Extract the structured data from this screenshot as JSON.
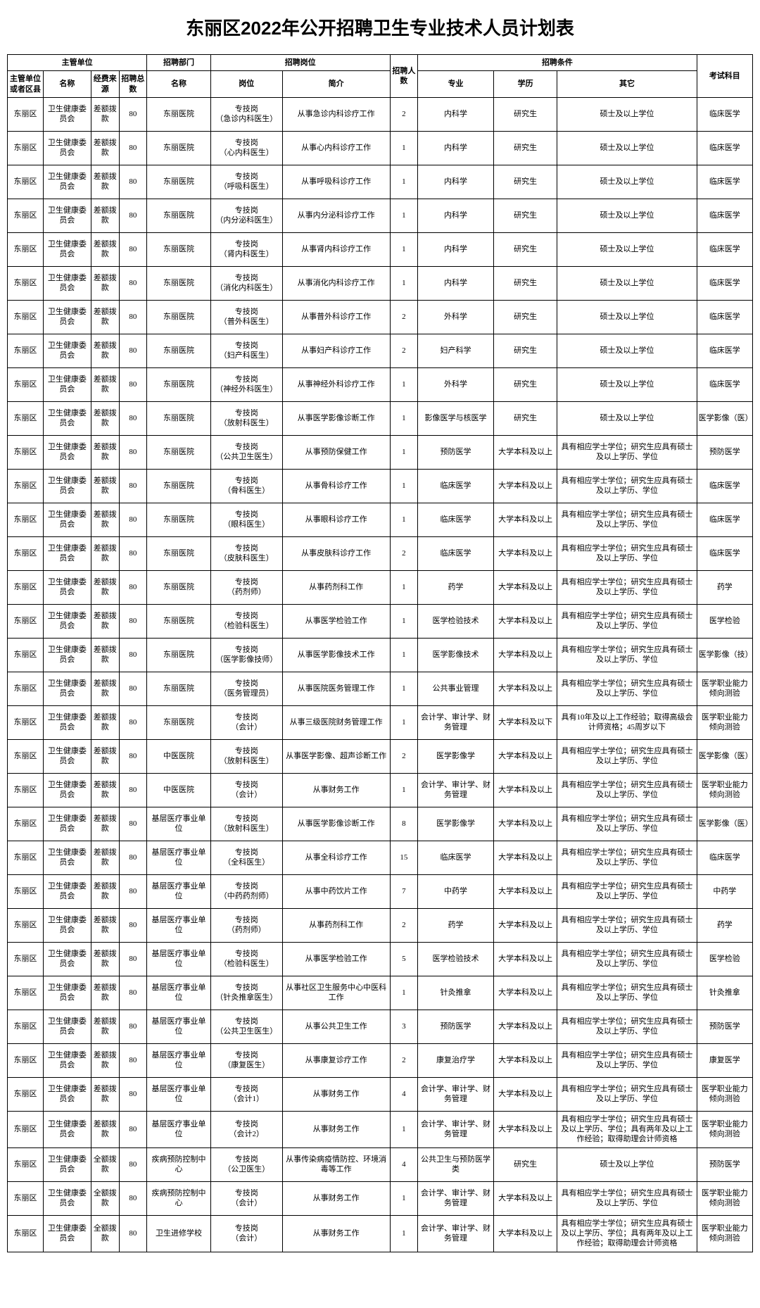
{
  "title": "东丽区2022年公开招聘卫生专业技术人员计划表",
  "headers": {
    "group_supervisor": "主管单位",
    "group_dept": "招聘部门",
    "group_post": "招聘岗位",
    "group_cond": "招聘条件",
    "district": "主管单位或者区县",
    "name": "名称",
    "fund": "经费来源",
    "total": "招聘总数",
    "dept": "名称",
    "post": "岗位",
    "desc": "简介",
    "num": "招聘人数",
    "major": "专业",
    "edu": "学历",
    "other": "其它",
    "exam": "考试科目"
  },
  "common": {
    "district": "东丽区",
    "name": "卫生健康委员会",
    "fund_cha": "差额拨款",
    "fund_quan": "全额拨款",
    "total": "80"
  },
  "rows": [
    {
      "dept": "东丽医院",
      "post": "专技岗\n（急诊内科医生）",
      "desc": "从事急诊内科诊疗工作",
      "num": "2",
      "major": "内科学",
      "edu": "研究生",
      "other": "硕士及以上学位",
      "exam": "临床医学"
    },
    {
      "dept": "东丽医院",
      "post": "专技岗\n（心内科医生）",
      "desc": "从事心内科诊疗工作",
      "num": "1",
      "major": "内科学",
      "edu": "研究生",
      "other": "硕士及以上学位",
      "exam": "临床医学"
    },
    {
      "dept": "东丽医院",
      "post": "专技岗\n（呼吸科医生）",
      "desc": "从事呼吸科诊疗工作",
      "num": "1",
      "major": "内科学",
      "edu": "研究生",
      "other": "硕士及以上学位",
      "exam": "临床医学"
    },
    {
      "dept": "东丽医院",
      "post": "专技岗\n（内分泌科医生）",
      "desc": "从事内分泌科诊疗工作",
      "num": "1",
      "major": "内科学",
      "edu": "研究生",
      "other": "硕士及以上学位",
      "exam": "临床医学"
    },
    {
      "dept": "东丽医院",
      "post": "专技岗\n（肾内科医生）",
      "desc": "从事肾内科诊疗工作",
      "num": "1",
      "major": "内科学",
      "edu": "研究生",
      "other": "硕士及以上学位",
      "exam": "临床医学"
    },
    {
      "dept": "东丽医院",
      "post": "专技岗\n（消化内科医生）",
      "desc": "从事消化内科诊疗工作",
      "num": "1",
      "major": "内科学",
      "edu": "研究生",
      "other": "硕士及以上学位",
      "exam": "临床医学"
    },
    {
      "dept": "东丽医院",
      "post": "专技岗\n（普外科医生）",
      "desc": "从事普外科诊疗工作",
      "num": "2",
      "major": "外科学",
      "edu": "研究生",
      "other": "硕士及以上学位",
      "exam": "临床医学"
    },
    {
      "dept": "东丽医院",
      "post": "专技岗\n（妇产科医生）",
      "desc": "从事妇产科诊疗工作",
      "num": "2",
      "major": "妇产科学",
      "edu": "研究生",
      "other": "硕士及以上学位",
      "exam": "临床医学"
    },
    {
      "dept": "东丽医院",
      "post": "专技岗\n（神经外科医生）",
      "desc": "从事神经外科诊疗工作",
      "num": "1",
      "major": "外科学",
      "edu": "研究生",
      "other": "硕士及以上学位",
      "exam": "临床医学"
    },
    {
      "dept": "东丽医院",
      "post": "专技岗\n（放射科医生）",
      "desc": "从事医学影像诊断工作",
      "num": "1",
      "major": "影像医学与核医学",
      "edu": "研究生",
      "other": "硕士及以上学位",
      "exam": "医学影像（医）"
    },
    {
      "dept": "东丽医院",
      "post": "专技岗\n（公共卫生医生）",
      "desc": "从事预防保健工作",
      "num": "1",
      "major": "预防医学",
      "edu": "大学本科及以上",
      "other": "具有相应学士学位；研究生应具有硕士及以上学历、学位",
      "exam": "预防医学"
    },
    {
      "dept": "东丽医院",
      "post": "专技岗\n（骨科医生）",
      "desc": "从事骨科诊疗工作",
      "num": "1",
      "major": "临床医学",
      "edu": "大学本科及以上",
      "other": "具有相应学士学位；研究生应具有硕士及以上学历、学位",
      "exam": "临床医学"
    },
    {
      "dept": "东丽医院",
      "post": "专技岗\n（眼科医生）",
      "desc": "从事眼科诊疗工作",
      "num": "1",
      "major": "临床医学",
      "edu": "大学本科及以上",
      "other": "具有相应学士学位；研究生应具有硕士及以上学历、学位",
      "exam": "临床医学"
    },
    {
      "dept": "东丽医院",
      "post": "专技岗\n（皮肤科医生）",
      "desc": "从事皮肤科诊疗工作",
      "num": "2",
      "major": "临床医学",
      "edu": "大学本科及以上",
      "other": "具有相应学士学位；研究生应具有硕士及以上学历、学位",
      "exam": "临床医学"
    },
    {
      "dept": "东丽医院",
      "post": "专技岗\n（药剂师）",
      "desc": "从事药剂科工作",
      "num": "1",
      "major": "药学",
      "edu": "大学本科及以上",
      "other": "具有相应学士学位；研究生应具有硕士及以上学历、学位",
      "exam": "药学"
    },
    {
      "dept": "东丽医院",
      "post": "专技岗\n（检验科医生）",
      "desc": "从事医学检验工作",
      "num": "1",
      "major": "医学检验技术",
      "edu": "大学本科及以上",
      "other": "具有相应学士学位；研究生应具有硕士及以上学历、学位",
      "exam": "医学检验"
    },
    {
      "dept": "东丽医院",
      "post": "专技岗\n（医学影像技师）",
      "desc": "从事医学影像技术工作",
      "num": "1",
      "major": "医学影像技术",
      "edu": "大学本科及以上",
      "other": "具有相应学士学位；研究生应具有硕士及以上学历、学位",
      "exam": "医学影像（技）"
    },
    {
      "dept": "东丽医院",
      "post": "专技岗\n（医务管理员）",
      "desc": "从事医院医务管理工作",
      "num": "1",
      "major": "公共事业管理",
      "edu": "大学本科及以上",
      "other": "具有相应学士学位；研究生应具有硕士及以上学历、学位",
      "exam": "医学职业能力倾向测验"
    },
    {
      "dept": "东丽医院",
      "post": "专技岗\n（会计）",
      "desc": "从事三级医院财务管理工作",
      "num": "1",
      "major": "会计学、审计学、财务管理",
      "edu": "大学本科及以下",
      "other": "具有10年及以上工作经验；取得高级会计师资格；45周岁以下",
      "exam": "医学职业能力倾向测验"
    },
    {
      "dept": "中医医院",
      "post": "专技岗\n（放射科医生）",
      "desc": "从事医学影像、超声诊断工作",
      "num": "2",
      "major": "医学影像学",
      "edu": "大学本科及以上",
      "other": "具有相应学士学位；研究生应具有硕士及以上学历、学位",
      "exam": "医学影像（医）"
    },
    {
      "dept": "中医医院",
      "post": "专技岗\n（会计）",
      "desc": "从事财务工作",
      "num": "1",
      "major": "会计学、审计学、财务管理",
      "edu": "大学本科及以上",
      "other": "具有相应学士学位；研究生应具有硕士及以上学历、学位",
      "exam": "医学职业能力倾向测验"
    },
    {
      "dept": "基层医疗事业单位",
      "post": "专技岗\n（放射科医生）",
      "desc": "从事医学影像诊断工作",
      "num": "8",
      "major": "医学影像学",
      "edu": "大学本科及以上",
      "other": "具有相应学士学位；研究生应具有硕士及以上学历、学位",
      "exam": "医学影像（医）"
    },
    {
      "dept": "基层医疗事业单位",
      "post": "专技岗\n（全科医生）",
      "desc": "从事全科诊疗工作",
      "num": "15",
      "major": "临床医学",
      "edu": "大学本科及以上",
      "other": "具有相应学士学位；研究生应具有硕士及以上学历、学位",
      "exam": "临床医学"
    },
    {
      "dept": "基层医疗事业单位",
      "post": "专技岗\n（中药药剂师）",
      "desc": "从事中药饮片工作",
      "num": "7",
      "major": "中药学",
      "edu": "大学本科及以上",
      "other": "具有相应学士学位；研究生应具有硕士及以上学历、学位",
      "exam": "中药学"
    },
    {
      "dept": "基层医疗事业单位",
      "post": "专技岗\n（药剂师）",
      "desc": "从事药剂科工作",
      "num": "2",
      "major": "药学",
      "edu": "大学本科及以上",
      "other": "具有相应学士学位；研究生应具有硕士及以上学历、学位",
      "exam": "药学"
    },
    {
      "dept": "基层医疗事业单位",
      "post": "专技岗\n（检验科医生）",
      "desc": "从事医学检验工作",
      "num": "5",
      "major": "医学检验技术",
      "edu": "大学本科及以上",
      "other": "具有相应学士学位；研究生应具有硕士及以上学历、学位",
      "exam": "医学检验"
    },
    {
      "dept": "基层医疗事业单位",
      "post": "专技岗\n（针灸推拿医生）",
      "desc": "从事社区卫生服务中心中医科工作",
      "num": "1",
      "major": "针灸推拿",
      "edu": "大学本科及以上",
      "other": "具有相应学士学位；研究生应具有硕士及以上学历、学位",
      "exam": "针灸推拿"
    },
    {
      "dept": "基层医疗事业单位",
      "post": "专技岗\n（公共卫生医生）",
      "desc": "从事公共卫生工作",
      "num": "3",
      "major": "预防医学",
      "edu": "大学本科及以上",
      "other": "具有相应学士学位；研究生应具有硕士及以上学历、学位",
      "exam": "预防医学"
    },
    {
      "dept": "基层医疗事业单位",
      "post": "专技岗\n（康复医生）",
      "desc": "从事康复诊疗工作",
      "num": "2",
      "major": "康复治疗学",
      "edu": "大学本科及以上",
      "other": "具有相应学士学位；研究生应具有硕士及以上学历、学位",
      "exam": "康复医学"
    },
    {
      "dept": "基层医疗事业单位",
      "post": "专技岗\n（会计1）",
      "desc": "从事财务工作",
      "num": "4",
      "major": "会计学、审计学、财务管理",
      "edu": "大学本科及以上",
      "other": "具有相应学士学位；研究生应具有硕士及以上学历、学位",
      "exam": "医学职业能力倾向测验"
    },
    {
      "dept": "基层医疗事业单位",
      "post": "专技岗\n（会计2）",
      "desc": "从事财务工作",
      "num": "1",
      "major": "会计学、审计学、财务管理",
      "edu": "大学本科及以上",
      "other": "具有相应学士学位；研究生应具有硕士及以上学历、学位；具有两年及以上工作经验；取得助理会计师资格",
      "exam": "医学职业能力倾向测验"
    },
    {
      "dept": "疾病预防控制中心",
      "post": "专技岗\n（公卫医生）",
      "desc": "从事传染病疫情防控、环境消毒等工作",
      "num": "4",
      "major": "公共卫生与预防医学类",
      "edu": "研究生",
      "other": "硕士及以上学位",
      "exam": "预防医学",
      "fund": "quan"
    },
    {
      "dept": "疾病预防控制中心",
      "post": "专技岗\n（会计）",
      "desc": "从事财务工作",
      "num": "1",
      "major": "会计学、审计学、财务管理",
      "edu": "大学本科及以上",
      "other": "具有相应学士学位；研究生应具有硕士及以上学历、学位",
      "exam": "医学职业能力倾向测验",
      "fund": "quan"
    },
    {
      "dept": "卫生进修学校",
      "post": "专技岗\n（会计）",
      "desc": "从事财务工作",
      "num": "1",
      "major": "会计学、审计学、财务管理",
      "edu": "大学本科及以上",
      "other": "具有相应学士学位；研究生应具有硕士及以上学历、学位；具有两年及以上工作经验；取得助理会计师资格",
      "exam": "医学职业能力倾向测验",
      "fund": "quan"
    }
  ]
}
